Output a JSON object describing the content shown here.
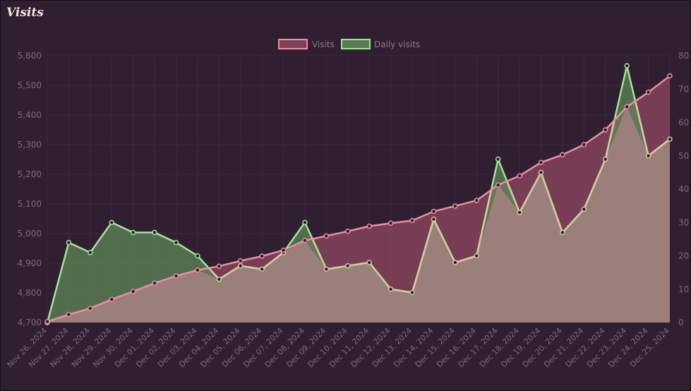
{
  "header": {
    "title": "Visits"
  },
  "chart_data": {
    "type": "area",
    "title": "",
    "categories": [
      "Nov 26, 2024",
      "Nov 27, 2024",
      "Nov 28, 2024",
      "Nov 29, 2024",
      "Nov 30, 2024",
      "Dec 01, 2024",
      "Dec 02, 2024",
      "Dec 03, 2024",
      "Dec 04, 2024",
      "Dec 05, 2024",
      "Dec 06, 2024",
      "Dec 07, 2024",
      "Dec 08, 2024",
      "Dec 09, 2024",
      "Dec 10, 2024",
      "Dec 11, 2024",
      "Dec 12, 2024",
      "Dec 13, 2024",
      "Dec 14, 2024",
      "Dec 15, 2024",
      "Dec 16, 2024",
      "Dec 17, 2024",
      "Dec 18, 2024",
      "Dec 19, 2024",
      "Dec 20, 2024",
      "Dec 21, 2024",
      "Dec 22, 2024",
      "Dec 23, 2024",
      "Dec 24, 2024",
      "Dec 25, 2024"
    ],
    "left_axis": {
      "min": 4700,
      "max": 5600,
      "step": 100,
      "ticks": [
        "4,700",
        "4,800",
        "4,900",
        "5,000",
        "5,100",
        "5,200",
        "5,300",
        "5,400",
        "5,500",
        "5,600"
      ]
    },
    "right_axis": {
      "min": 0,
      "max": 80,
      "step": 10,
      "ticks": [
        "0",
        "10",
        "20",
        "30",
        "40",
        "50",
        "60",
        "70",
        "80"
      ]
    },
    "series": [
      {
        "name": "Visits",
        "axis": "left",
        "color": "#f48ca0",
        "fill": "rgba(140,70,95,0.78)",
        "values": [
          4703,
          4727,
          4748,
          4778,
          4805,
          4833,
          4857,
          4877,
          4890,
          4908,
          4924,
          4944,
          4977,
          4992,
          5008,
          5025,
          5035,
          5044,
          5075,
          5093,
          5112,
          5164,
          5195,
          5240,
          5266,
          5300,
          5350,
          5428,
          5477,
          5532
        ]
      },
      {
        "name": "Daily visits",
        "axis": "right",
        "color": "#9ee893",
        "fill": "rgba(95,140,90,0.72)",
        "values": [
          0,
          24,
          21,
          30,
          27,
          27,
          24,
          20,
          13,
          17,
          16,
          21,
          30,
          16,
          17,
          18,
          10,
          9,
          31,
          18,
          20,
          49,
          33,
          45,
          27,
          34,
          49,
          77,
          50,
          55
        ]
      }
    ],
    "overlap_fill": "#9b7f7b",
    "legend": {
      "position": "top-center",
      "items": [
        "Visits",
        "Daily visits"
      ]
    },
    "grid": true
  }
}
